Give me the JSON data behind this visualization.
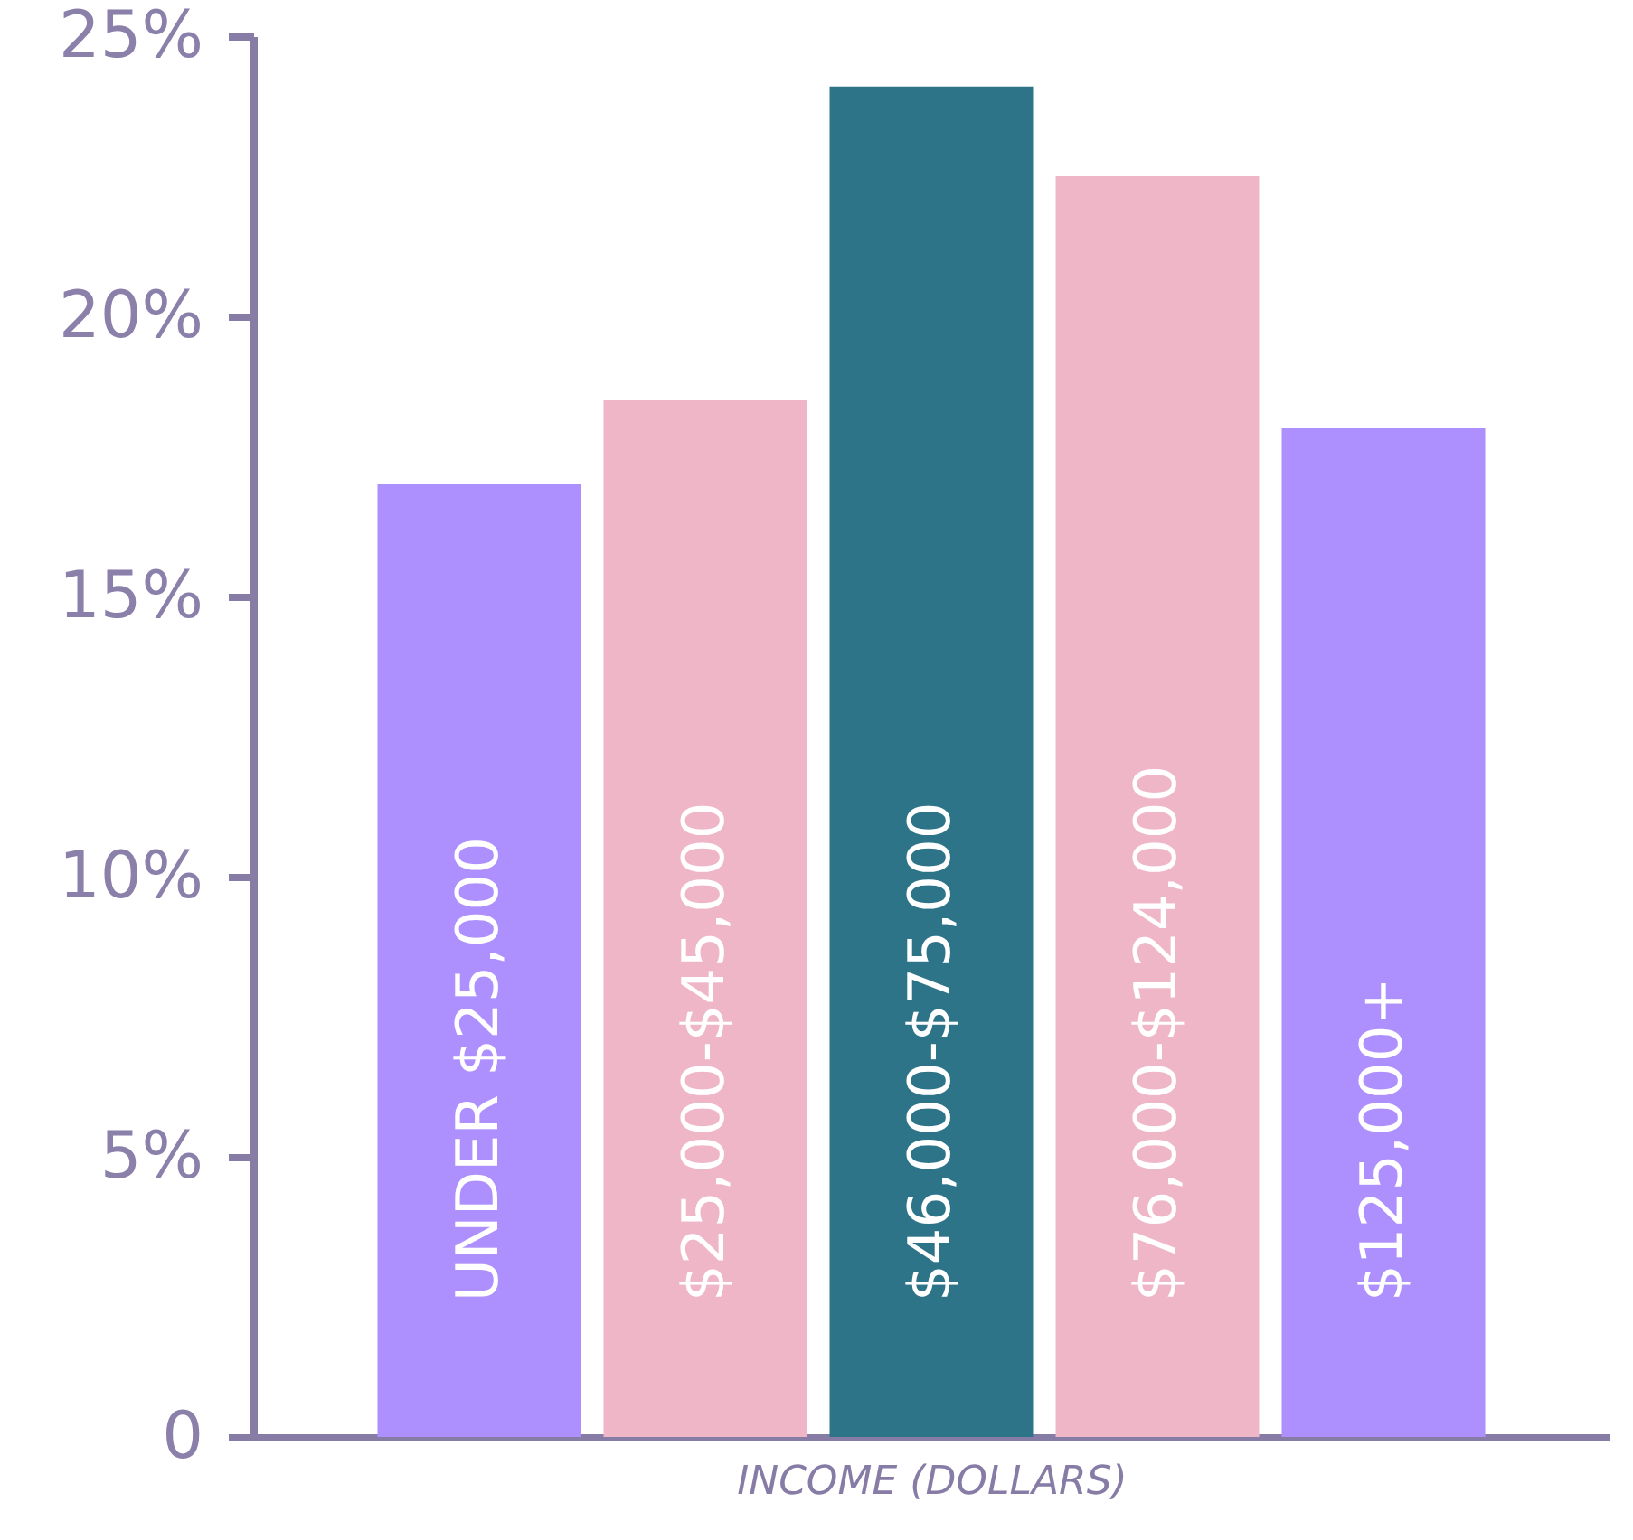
{
  "chart_data": {
    "type": "bar",
    "xlabel": "INCOME (DOLLARS)",
    "categories": [
      "UNDER $25,000",
      "$25,000-$45,000",
      "$46,000-$75,000",
      "$76,000-$124,000",
      "$125,000+"
    ],
    "values": [
      17,
      18.5,
      24.1,
      22.5,
      18
    ],
    "colors": [
      "#ad8ffe",
      "#efb6c8",
      "#2e7489",
      "#efb6c8",
      "#ad8ffe"
    ],
    "ylim": [
      0,
      25
    ],
    "yticks": [
      {
        "value": 0,
        "label": "0"
      },
      {
        "value": 5,
        "label": "5%"
      },
      {
        "value": 10,
        "label": "10%"
      },
      {
        "value": 15,
        "label": "15%"
      },
      {
        "value": 20,
        "label": "20%"
      },
      {
        "value": 25,
        "label": "25%"
      }
    ],
    "grid": false
  }
}
